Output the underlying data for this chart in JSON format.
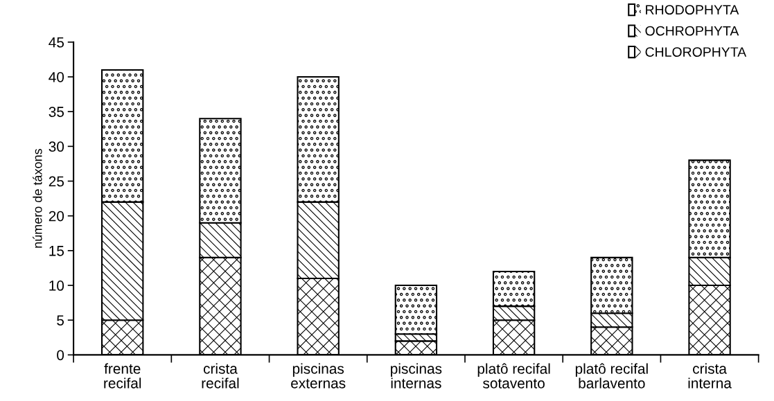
{
  "chart_data": {
    "type": "bar",
    "stacked": true,
    "ylabel": "número de táxons",
    "categories": [
      "frente\nrecifal",
      "crista\nrecifal",
      "piscinas\nexternas",
      "piscinas\ninternas",
      "platô recifal\nsotavento",
      "platô recifal\nbarlavento",
      "crista\ninterna"
    ],
    "series": [
      {
        "name": "CHLOROPHYTA",
        "color": "#ffffff",
        "values": [
          5,
          14,
          11,
          2,
          5,
          4,
          10
        ]
      },
      {
        "name": "OCHROPHYTA",
        "color": "#ffffff",
        "values": [
          17,
          5,
          11,
          1,
          2,
          2,
          4
        ]
      },
      {
        "name": "RHODOPHYTA",
        "color": "#ffffff",
        "values": [
          19,
          15,
          18,
          7,
          5,
          8,
          14
        ]
      }
    ],
    "ylim": [
      0,
      45
    ],
    "yticks": [
      0,
      5,
      10,
      15,
      20,
      25,
      30,
      35,
      40,
      45
    ],
    "grid": false,
    "legend": "top right"
  }
}
